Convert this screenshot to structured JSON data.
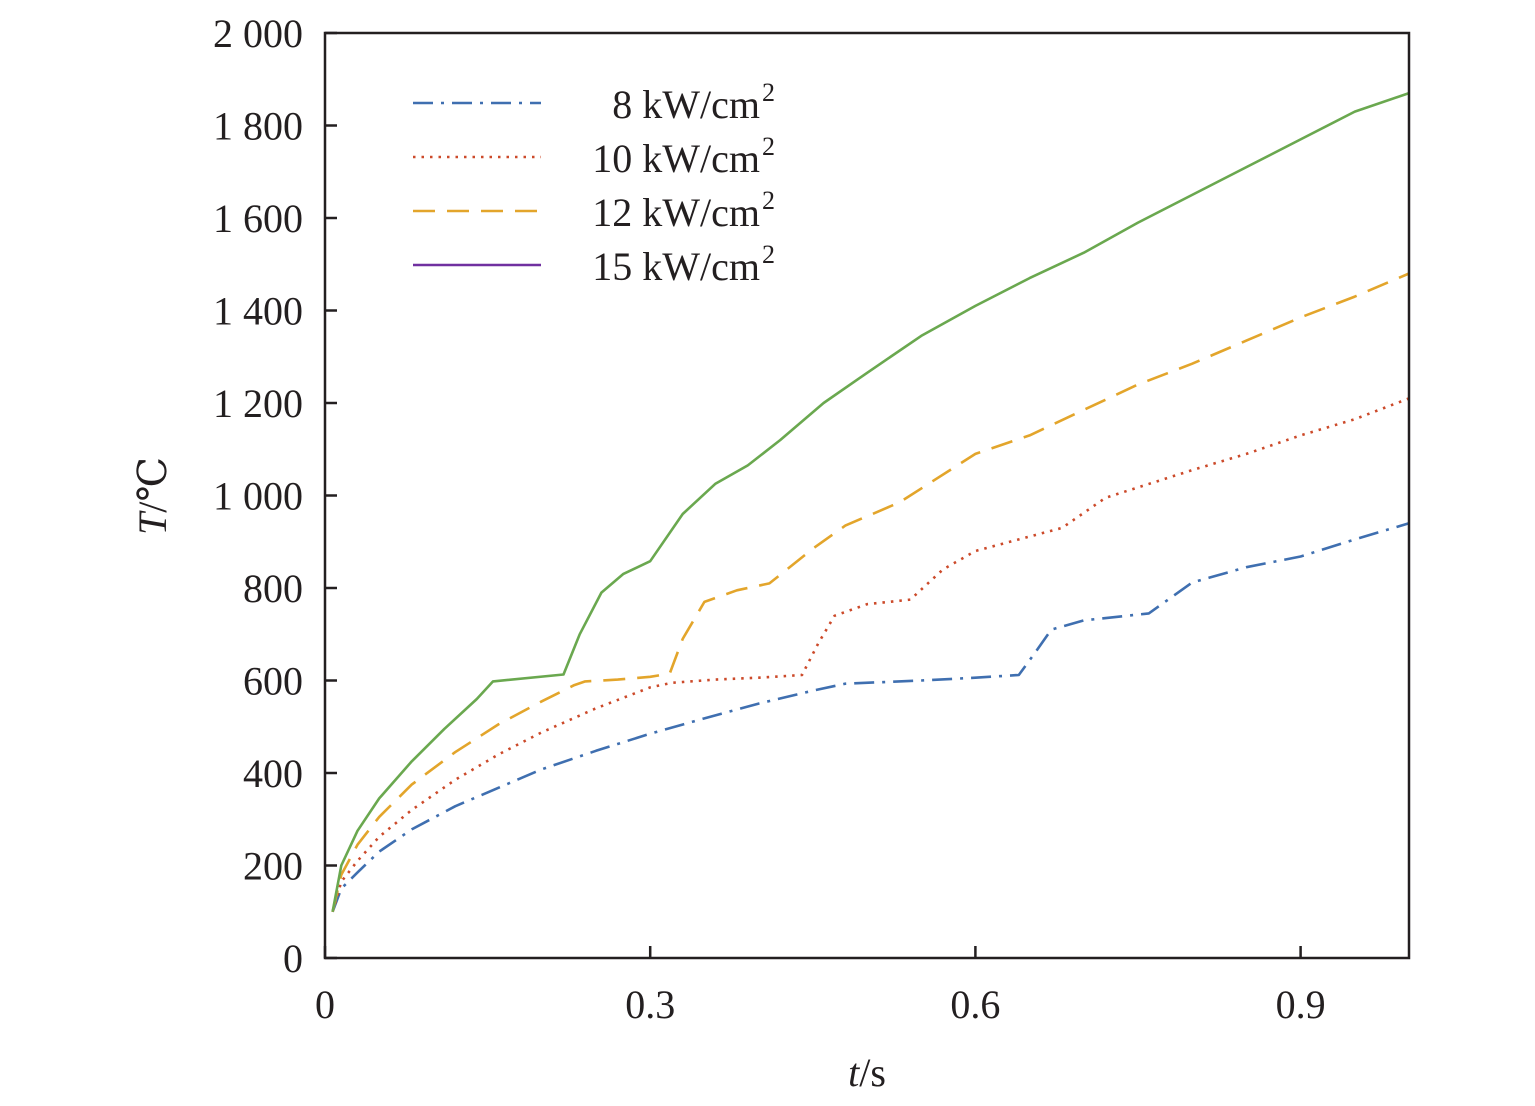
{
  "chart_data": {
    "type": "line",
    "xlabel": {
      "italic": "t",
      "unit": "/s"
    },
    "ylabel": {
      "italic": "T",
      "unit": "/℃"
    },
    "xlim": [
      0,
      1.0
    ],
    "ylim": [
      0,
      2000
    ],
    "xticks": [
      0,
      0.3,
      0.6,
      0.9
    ],
    "xtick_labels": [
      "0",
      "0.3",
      "0.6",
      "0.9"
    ],
    "yticks": [
      0,
      200,
      400,
      600,
      800,
      1000,
      1200,
      1400,
      1600,
      1800,
      2000
    ],
    "ytick_labels": [
      "0",
      "200",
      "400",
      "600",
      "800",
      "1 000",
      "1 200",
      "1 400",
      "1 600",
      "1 800",
      "2 000"
    ],
    "grid": false,
    "legend_position": "top-left",
    "series": [
      {
        "name": "8 kW/cm²",
        "label_num": "8 kW/cm",
        "label_sup": "2",
        "color": "#3f6fb0",
        "dash": "dashdot",
        "x": [
          0.007,
          0.015,
          0.03,
          0.05,
          0.08,
          0.12,
          0.16,
          0.2,
          0.25,
          0.3,
          0.35,
          0.4,
          0.45,
          0.48,
          0.55,
          0.6,
          0.64,
          0.655,
          0.67,
          0.7,
          0.76,
          0.8,
          0.85,
          0.9,
          0.95,
          1.0
        ],
        "y": [
          100,
          150,
          185,
          230,
          278,
          328,
          368,
          408,
          448,
          485,
          518,
          550,
          578,
          593,
          600,
          606,
          612,
          660,
          710,
          730,
          745,
          812,
          845,
          868,
          905,
          940
        ]
      },
      {
        "name": "10 kW/cm²",
        "label_num": "10 kW/cm",
        "label_sup": "2",
        "color": "#cc4a2a",
        "dash": "dotted",
        "x": [
          0.007,
          0.015,
          0.03,
          0.05,
          0.08,
          0.12,
          0.16,
          0.2,
          0.25,
          0.3,
          0.32,
          0.36,
          0.4,
          0.44,
          0.455,
          0.47,
          0.5,
          0.54,
          0.57,
          0.6,
          0.64,
          0.68,
          0.72,
          0.8,
          0.85,
          0.9,
          0.95,
          1.0
        ],
        "y": [
          100,
          165,
          210,
          262,
          320,
          385,
          440,
          488,
          540,
          585,
          595,
          602,
          606,
          612,
          680,
          740,
          765,
          775,
          840,
          880,
          905,
          930,
          995,
          1055,
          1090,
          1130,
          1165,
          1210
        ]
      },
      {
        "name": "12 kW/cm²",
        "label_num": "12 kW/cm",
        "label_sup": "2",
        "color": "#e3a52b",
        "dash": "dashed",
        "x": [
          0.007,
          0.015,
          0.03,
          0.05,
          0.08,
          0.12,
          0.16,
          0.2,
          0.23,
          0.24,
          0.27,
          0.3,
          0.318,
          0.33,
          0.35,
          0.38,
          0.41,
          0.45,
          0.48,
          0.53,
          0.56,
          0.6,
          0.65,
          0.7,
          0.75,
          0.8,
          0.85,
          0.9,
          0.95,
          1.0
        ],
        "y": [
          100,
          180,
          245,
          305,
          375,
          445,
          505,
          555,
          590,
          598,
          602,
          608,
          615,
          690,
          770,
          795,
          810,
          885,
          935,
          985,
          1030,
          1090,
          1130,
          1185,
          1240,
          1285,
          1335,
          1385,
          1430,
          1480
        ]
      },
      {
        "name": "15 kW/cm²",
        "label_num": "15 kW/cm",
        "label_sup": "2",
        "color": "#7030a0",
        "render_color": "#6aa84f",
        "dash": "solid",
        "x": [
          0.007,
          0.015,
          0.03,
          0.05,
          0.08,
          0.11,
          0.14,
          0.155,
          0.22,
          0.235,
          0.255,
          0.275,
          0.3,
          0.33,
          0.36,
          0.39,
          0.42,
          0.46,
          0.5,
          0.55,
          0.6,
          0.65,
          0.7,
          0.75,
          0.8,
          0.85,
          0.9,
          0.95,
          1.0
        ],
        "y": [
          100,
          200,
          275,
          345,
          425,
          495,
          560,
          598,
          613,
          700,
          790,
          830,
          858,
          960,
          1025,
          1065,
          1120,
          1200,
          1265,
          1345,
          1410,
          1470,
          1525,
          1590,
          1650,
          1710,
          1770,
          1830,
          1870
        ]
      }
    ]
  }
}
